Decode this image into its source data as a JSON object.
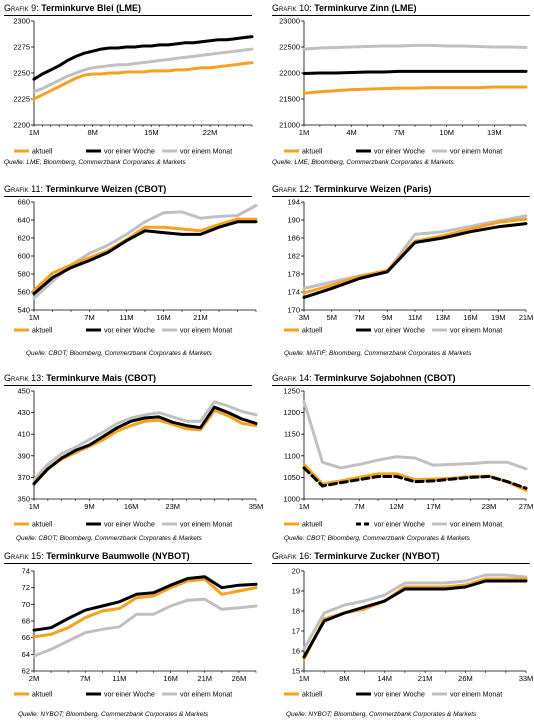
{
  "legend_labels": [
    "aktuell",
    "vor einer Woche",
    "vor einem Monat"
  ],
  "colors": {
    "aktuell": "#f5a21e",
    "woche": "#000000",
    "monat": "#c0c0c0"
  },
  "panels": [
    {
      "title_num": "Grafik 9:",
      "title_name": "Terminkurve Blei (LME)",
      "source": "Quelle: LME; Bloomberg, Commerzbank Corporates & Markets",
      "chart_data": {
        "type": "line",
        "x": [
          "1M",
          "2M",
          "3M",
          "4M",
          "5M",
          "6M",
          "7M",
          "8M",
          "9M",
          "10M",
          "11M",
          "12M",
          "13M",
          "14M",
          "15M",
          "16M",
          "17M",
          "18M",
          "19M",
          "20M",
          "21M",
          "22M",
          "23M",
          "24M",
          "25M",
          "26M",
          "27M"
        ],
        "xticks": [
          "1M",
          "8M",
          "15M",
          "22M"
        ],
        "ylim": [
          2200,
          2300
        ],
        "yticks": [
          2200,
          2225,
          2250,
          2275,
          2300
        ],
        "series": [
          {
            "name": "aktuell",
            "values": [
              2225,
              2229,
              2233,
              2237,
              2241,
              2245,
              2248,
              2249,
              2249,
              2250,
              2250,
              2251,
              2251,
              2251,
              2252,
              2252,
              2252,
              2253,
              2253,
              2254,
              2255,
              2255,
              2256,
              2257,
              2258,
              2259,
              2260
            ]
          },
          {
            "name": "vor einer Woche",
            "values": [
              2244,
              2249,
              2253,
              2257,
              2262,
              2266,
              2269,
              2271,
              2273,
              2274,
              2274,
              2275,
              2275,
              2276,
              2276,
              2277,
              2277,
              2278,
              2279,
              2279,
              2280,
              2281,
              2282,
              2282,
              2283,
              2284,
              2285
            ]
          },
          {
            "name": "vor einem Monat",
            "values": [
              2232,
              2235,
              2239,
              2243,
              2247,
              2250,
              2253,
              2255,
              2256,
              2257,
              2258,
              2258,
              2259,
              2260,
              2261,
              2262,
              2263,
              2264,
              2265,
              2266,
              2267,
              2268,
              2269,
              2270,
              2271,
              2272,
              2273
            ]
          }
        ]
      }
    },
    {
      "title_num": "Grafik 10:",
      "title_name": "Terminkurve Zinn (LME)",
      "source": "Quelle: LME; Bloomberg, Commerzbank Corporates & Markets",
      "chart_data": {
        "type": "line",
        "x": [
          "1M",
          "2M",
          "3M",
          "4M",
          "5M",
          "6M",
          "7M",
          "8M",
          "9M",
          "10M",
          "11M",
          "12M",
          "13M",
          "14M",
          "15M"
        ],
        "xticks": [
          "1M",
          "4M",
          "7M",
          "10M",
          "13M"
        ],
        "ylim": [
          21000,
          23000
        ],
        "yticks": [
          21000,
          21500,
          22000,
          22500,
          23000
        ],
        "series": [
          {
            "name": "aktuell",
            "values": [
              21610,
              21640,
              21660,
              21680,
              21690,
              21700,
              21710,
              21710,
              21720,
              21720,
              21720,
              21720,
              21730,
              21730,
              21730
            ]
          },
          {
            "name": "vor einer Woche",
            "values": [
              21990,
              22000,
              22000,
              22010,
              22020,
              22020,
              22030,
              22030,
              22030,
              22030,
              22030,
              22030,
              22030,
              22030,
              22030
            ]
          },
          {
            "name": "vor einem Monat",
            "values": [
              22460,
              22480,
              22490,
              22500,
              22510,
              22520,
              22520,
              22530,
              22530,
              22520,
              22520,
              22510,
              22500,
              22500,
              22490
            ]
          }
        ]
      }
    },
    {
      "title_num": "Grafik 11:",
      "title_name": "Terminkurve Weizen (CBOT)",
      "source": "Quelle: CBOT; Bloomberg, Commerzbank Corporates & Markets",
      "chart_data": {
        "type": "line",
        "x": [
          "1M",
          "3M",
          "5M",
          "7M",
          "9M",
          "11M",
          "13M",
          "16M",
          "18M",
          "21M",
          "23M",
          "25M",
          "27M"
        ],
        "xticks": [
          "1M",
          "7M",
          "11M",
          "16M",
          "21M"
        ],
        "ylim": [
          540,
          660
        ],
        "yticks": [
          540,
          560,
          580,
          600,
          620,
          640,
          660
        ],
        "series": [
          {
            "name": "aktuell",
            "values": [
              562,
              581,
              590,
              598,
              606,
              618,
              632,
              632,
              630,
              628,
              635,
              641,
              641
            ]
          },
          {
            "name": "vor einer Woche",
            "values": [
              558,
              576,
              587,
              595,
              604,
              617,
              628,
              626,
              624,
              624,
              632,
              638,
              638
            ]
          },
          {
            "name": "vor einem Monat",
            "values": [
              553,
              572,
              590,
              603,
              612,
              624,
              638,
              648,
              649,
              642,
              644,
              645,
              656
            ]
          }
        ]
      }
    },
    {
      "title_num": "Grafik 12:",
      "title_name": "Terminkurve Weizen (Paris)",
      "source": "Quelle: MATIF; Bloomberg, Commerzbank Corporates & Markets",
      "chart_data": {
        "type": "line",
        "x": [
          "3M",
          "5M",
          "7M",
          "9M",
          "11M",
          "13M",
          "16M",
          "19M",
          "21M"
        ],
        "xticks": [
          "3M",
          "5M",
          "7M",
          "9M",
          "11M",
          "13M",
          "16M",
          "19M",
          "21M"
        ],
        "ylim": [
          170,
          194
        ],
        "yticks": [
          170,
          174,
          178,
          182,
          186,
          190,
          194
        ],
        "series": [
          {
            "name": "aktuell",
            "values": [
              173.8,
              175.5,
              177.5,
              178.8,
              185.3,
              186.5,
              188.0,
              189.5,
              190.2
            ]
          },
          {
            "name": "vor einer Woche",
            "values": [
              172.8,
              174.8,
              177.0,
              178.5,
              185.0,
              186.0,
              187.4,
              188.5,
              189.2
            ]
          },
          {
            "name": "vor einem Monat",
            "values": [
              174.8,
              176.2,
              177.6,
              178.6,
              186.8,
              187.4,
              188.6,
              189.8,
              190.9
            ]
          }
        ]
      }
    },
    {
      "title_num": "Grafik 13:",
      "title_name": "Terminkurve Mais (CBOT)",
      "source": "Quelle: CBOT; Bloomberg, Commerzbank Corporates & Markets",
      "chart_data": {
        "type": "line",
        "x": [
          "1M",
          "3M",
          "5M",
          "7M",
          "9M",
          "11M",
          "13M",
          "16M",
          "18M",
          "21M",
          "23M",
          "25M",
          "27M",
          "29M",
          "31M",
          "33M",
          "35M"
        ],
        "xticks": [
          "1M",
          "9M",
          "16M",
          "23M",
          "30M",
          "35M"
        ],
        "ylim": [
          350,
          450
        ],
        "yticks": [
          350,
          370,
          390,
          410,
          430,
          450
        ],
        "series": [
          {
            "name": "aktuell",
            "values": [
              365,
              378,
              387,
              393,
              399,
              405,
              413,
              418,
              422,
              423,
              419,
              415,
              414,
              432,
              427,
              420,
              418
            ]
          },
          {
            "name": "vor einer Woche",
            "values": [
              364,
              378,
              388,
              395,
              400,
              408,
              416,
              422,
              425,
              426,
              421,
              418,
              416,
              435,
              430,
              424,
              420
            ]
          },
          {
            "name": "vor einem Monat",
            "values": [
              368,
              382,
              392,
              398,
              405,
              412,
              420,
              425,
              428,
              430,
              426,
              422,
              422,
              440,
              436,
              431,
              428
            ]
          }
        ]
      }
    },
    {
      "title_num": "Grafik 14:",
      "title_name": "Terminkurve Sojabohnen (CBOT)",
      "source": "Quelle: CBOT; Bloomberg, Commerzbank Corporates & Markets",
      "chart_data": {
        "type": "line",
        "x": [
          "1M",
          "3M",
          "5M",
          "7M",
          "9M",
          "12M",
          "15M",
          "17M",
          "19M",
          "21M",
          "23M",
          "25M",
          "27M"
        ],
        "xticks": [
          "1M",
          "7M",
          "12M",
          "17M",
          "23M",
          "27M"
        ],
        "ylim": [
          1000,
          1250
        ],
        "yticks": [
          1000,
          1050,
          1100,
          1150,
          1200,
          1250
        ],
        "series": [
          {
            "name": "aktuell",
            "values": [
              1080,
              1035,
              1042,
              1050,
              1058,
              1058,
              1045,
              1046,
              1048,
              1052,
              1053,
              1040,
              1020
            ]
          },
          {
            "name": "vor einer Woche",
            "values": [
              1072,
              1030,
              1038,
              1045,
              1052,
              1052,
              1040,
              1042,
              1046,
              1050,
              1052,
              1040,
              1025
            ]
          },
          {
            "name": "vor einem Monat",
            "values": [
              1225,
              1085,
              1072,
              1080,
              1090,
              1098,
              1095,
              1078,
              1080,
              1082,
              1085,
              1085,
              1070
            ]
          }
        ]
      }
    },
    {
      "title_num": "Grafik 15:",
      "title_name": "Terminkurve Baumwolle (NYBOT)",
      "source": "Quelle: NYBOT; Bloomberg, Commerzbank Corporates & Markets",
      "chart_data": {
        "type": "line",
        "x": [
          "2M",
          "4M",
          "6M",
          "7M",
          "9M",
          "11M",
          "12M",
          "14M",
          "16M",
          "19M",
          "21M",
          "24M",
          "26M",
          "28M"
        ],
        "xticks": [
          "2M",
          "7M",
          "11M",
          "16M",
          "21M",
          "26M"
        ],
        "ylim": [
          62,
          74
        ],
        "yticks": [
          62,
          64,
          66,
          68,
          70,
          72,
          74
        ],
        "series": [
          {
            "name": "aktuell",
            "values": [
              66.1,
              66.4,
              67.2,
              68.4,
              69.2,
              69.5,
              70.8,
              71.0,
              72.0,
              72.8,
              73.0,
              71.2,
              71.6,
              72.0
            ]
          },
          {
            "name": "vor einer Woche",
            "values": [
              66.9,
              67.2,
              68.3,
              69.3,
              69.8,
              70.3,
              71.2,
              71.4,
              72.3,
              73.1,
              73.3,
              72.0,
              72.3,
              72.4
            ]
          },
          {
            "name": "vor einem Monat",
            "values": [
              63.8,
              64.6,
              65.6,
              66.6,
              67.0,
              67.3,
              68.8,
              68.8,
              69.8,
              70.5,
              70.6,
              69.4,
              69.6,
              69.8
            ]
          }
        ]
      }
    },
    {
      "title_num": "Grafik 16:",
      "title_name": "Terminkurve Zucker (NYBOT)",
      "source": "Quelle: NYBOT; Bloomberg, Commerzbank Corporates & Markets",
      "chart_data": {
        "type": "line",
        "x": [
          "1M",
          "4M",
          "8M",
          "11M",
          "14M",
          "17M",
          "21M",
          "24M",
          "26M",
          "29M",
          "31M",
          "33M"
        ],
        "xticks": [
          "1M",
          "8M",
          "14M",
          "21M",
          "26M",
          "33M"
        ],
        "ylim": [
          15,
          20
        ],
        "yticks": [
          15,
          16,
          17,
          18,
          19,
          20
        ],
        "series": [
          {
            "name": "aktuell",
            "values": [
              15.6,
              17.6,
              17.9,
              18.1,
              18.5,
              19.2,
              19.2,
              19.2,
              19.3,
              19.6,
              19.6,
              19.6
            ]
          },
          {
            "name": "vor einer Woche",
            "values": [
              15.7,
              17.5,
              17.9,
              18.2,
              18.5,
              19.1,
              19.1,
              19.1,
              19.2,
              19.5,
              19.5,
              19.5
            ]
          },
          {
            "name": "vor einem Monat",
            "values": [
              16.1,
              17.9,
              18.3,
              18.5,
              18.8,
              19.4,
              19.4,
              19.4,
              19.5,
              19.8,
              19.8,
              19.7
            ]
          }
        ]
      }
    }
  ]
}
